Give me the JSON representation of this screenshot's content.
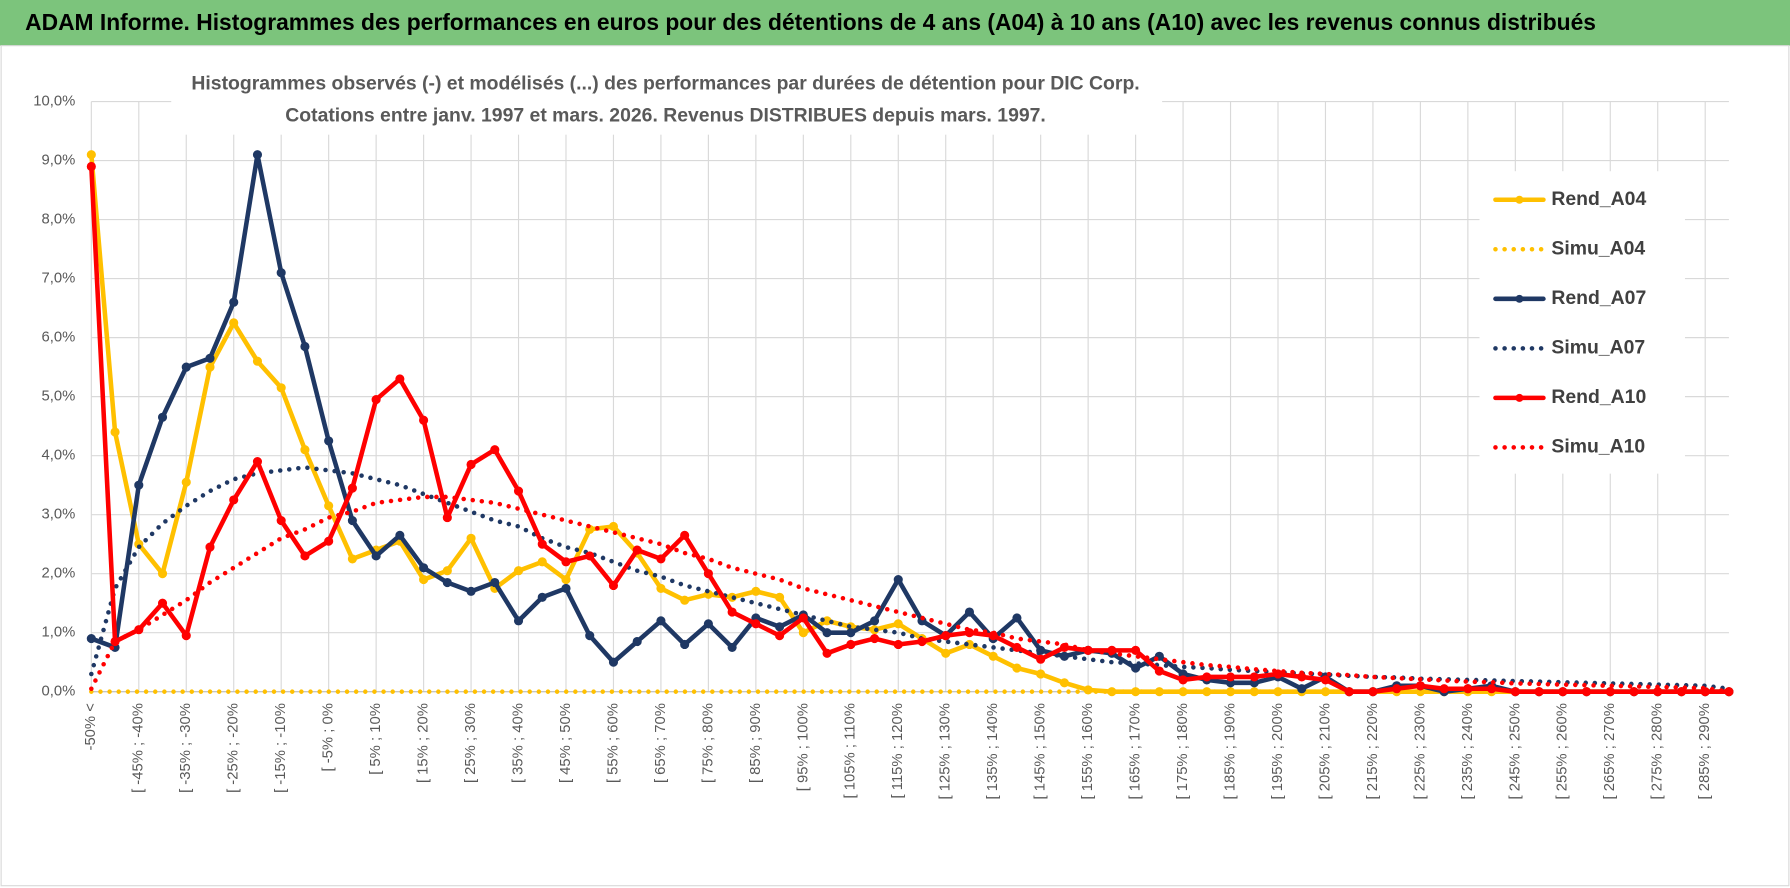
{
  "header": {
    "title": "ADAM Informe. Histogrammes des performances en euros pour des détentions de 4 ans (A04) à 10 ans (A10) avec les revenus connus distribués"
  },
  "chart_data": {
    "type": "line",
    "title": [
      "Histogrammes observés (-) et modélisés (...) des performances par durées de détention pour DIC Corp.",
      "Cotations entre janv. 1997 et mars. 2026. Revenus DISTRIBUES depuis mars. 1997."
    ],
    "categories": [
      "-50% <",
      null,
      "[ -45% ; -40%",
      null,
      "[ -35% ; -30%",
      null,
      "[ -25% ; -20%",
      null,
      "[ -15% ; -10%",
      null,
      "[ -5% ; 0%",
      null,
      "[ 5% ; 10%",
      null,
      "[ 15% ; 20%",
      null,
      "[ 25% ; 30%",
      null,
      "[ 35% ; 40%",
      null,
      "[ 45% ; 50%",
      null,
      "[ 55% ; 60%",
      null,
      "[ 65% ; 70%",
      null,
      "[ 75% ; 80%",
      null,
      "[ 85% ; 90%",
      null,
      "[ 95% ; 100%",
      null,
      "[ 105% ; 110%",
      null,
      "[ 115% ; 120%",
      null,
      "[ 125% ; 130%",
      null,
      "[ 135% ; 140%",
      null,
      "[ 145% ; 150%",
      null,
      "[ 155% ; 160%",
      null,
      "[ 165% ; 170%",
      null,
      "[ 175% ; 180%",
      null,
      "[ 185% ; 190%",
      null,
      "[ 195% ; 200%",
      null,
      "[ 205% ; 210%",
      null,
      "[ 215% ; 220%",
      null,
      "[ 225% ; 230%",
      null,
      "[ 235% ; 240%",
      null,
      "[ 245% ; 250%",
      null,
      "[ 255% ; 260%",
      null,
      "[ 265% ; 270%",
      null,
      "[ 275% ; 280%",
      null,
      "[ 285% ; 290%",
      null
    ],
    "ylim": [
      0,
      10
    ],
    "yticks": [
      {
        "value": 0,
        "label": "0,0%"
      },
      {
        "value": 1,
        "label": "1,0%"
      },
      {
        "value": 2,
        "label": "2,0%"
      },
      {
        "value": 3,
        "label": "3,0%"
      },
      {
        "value": 4,
        "label": "4,0%"
      },
      {
        "value": 5,
        "label": "5,0%"
      },
      {
        "value": 6,
        "label": "6,0%"
      },
      {
        "value": 7,
        "label": "7,0%"
      },
      {
        "value": 8,
        "label": "8,0%"
      },
      {
        "value": 9,
        "label": "9,0%"
      },
      {
        "value": 10,
        "label": "10,0%"
      }
    ],
    "grid": true,
    "legend": "right",
    "series": [
      {
        "name": "Rend_A04",
        "color": "#FFC000",
        "style": "solid",
        "markers": true,
        "values": [
          9.1,
          4.4,
          2.5,
          2.0,
          3.55,
          5.5,
          6.25,
          5.6,
          5.15,
          4.1,
          3.15,
          2.25,
          2.4,
          2.55,
          1.9,
          2.05,
          2.6,
          1.75,
          2.05,
          2.2,
          1.9,
          2.75,
          2.8,
          2.35,
          1.75,
          1.55,
          1.65,
          1.6,
          1.7,
          1.6,
          1.0,
          1.2,
          1.1,
          1.05,
          1.15,
          0.9,
          0.65,
          0.8,
          0.6,
          0.4,
          0.3,
          0.15,
          0.03,
          0,
          0,
          0,
          0,
          0,
          0,
          0,
          0,
          0,
          0,
          0,
          0,
          0,
          0,
          0,
          0,
          0,
          0,
          0,
          0,
          0,
          0,
          0,
          0,
          0,
          0,
          0
        ]
      },
      {
        "name": "Simu_A04",
        "color": "#FFC000",
        "style": "dotted",
        "markers": false,
        "values": [
          0,
          0,
          0,
          0,
          0,
          0,
          0,
          0,
          0,
          0,
          0,
          0,
          0,
          0,
          0,
          0,
          0,
          0,
          0,
          0,
          0,
          0,
          0,
          0,
          0,
          0,
          0,
          0,
          0,
          0,
          0,
          0,
          0,
          0,
          0,
          0,
          0,
          0,
          0,
          0,
          0,
          0,
          0,
          0,
          0,
          0,
          0,
          0,
          0,
          0,
          0,
          0,
          0,
          0,
          0,
          0,
          0,
          0,
          0,
          0,
          0,
          0,
          0,
          0,
          0,
          0,
          0,
          0,
          0,
          0
        ]
      },
      {
        "name": "Rend_A07",
        "color": "#1F3864",
        "style": "solid",
        "markers": true,
        "values": [
          0.9,
          0.75,
          3.5,
          4.65,
          5.5,
          5.65,
          6.6,
          9.1,
          7.1,
          5.85,
          4.25,
          2.9,
          2.3,
          2.65,
          2.1,
          1.85,
          1.7,
          1.85,
          1.2,
          1.6,
          1.75,
          0.95,
          0.5,
          0.85,
          1.2,
          0.8,
          1.15,
          0.75,
          1.25,
          1.1,
          1.3,
          1.0,
          1.0,
          1.2,
          1.9,
          1.2,
          0.95,
          1.35,
          0.9,
          1.25,
          0.7,
          0.6,
          0.7,
          0.65,
          0.4,
          0.6,
          0.3,
          0.2,
          0.15,
          0.15,
          0.25,
          0.05,
          0.25,
          0,
          0,
          0.1,
          0.1,
          0,
          0.05,
          0.1,
          0,
          0,
          0,
          0,
          0,
          0,
          0,
          0,
          0,
          0
        ]
      },
      {
        "name": "Simu_A07",
        "color": "#1F3864",
        "style": "dotted",
        "markers": false,
        "values": [
          0.3,
          1.75,
          2.45,
          2.85,
          3.15,
          3.4,
          3.6,
          3.7,
          3.75,
          3.8,
          3.75,
          3.7,
          3.6,
          3.5,
          3.35,
          3.2,
          3.05,
          2.9,
          2.8,
          2.6,
          2.45,
          2.35,
          2.2,
          2.05,
          1.95,
          1.8,
          1.7,
          1.6,
          1.5,
          1.4,
          1.3,
          1.2,
          1.1,
          1.05,
          1.0,
          0.9,
          0.85,
          0.8,
          0.75,
          0.7,
          0.65,
          0.6,
          0.55,
          0.5,
          0.48,
          0.45,
          0.42,
          0.4,
          0.37,
          0.35,
          0.33,
          0.31,
          0.29,
          0.27,
          0.25,
          0.24,
          0.22,
          0.21,
          0.2,
          0.19,
          0.18,
          0.17,
          0.16,
          0.15,
          0.14,
          0.13,
          0.12,
          0.11,
          0.1,
          0.05
        ]
      },
      {
        "name": "Rend_A10",
        "color": "#FF0000",
        "style": "solid",
        "markers": true,
        "values": [
          8.9,
          0.85,
          1.05,
          1.5,
          0.95,
          2.45,
          3.25,
          3.9,
          2.9,
          2.3,
          2.55,
          3.45,
          4.95,
          5.3,
          4.6,
          2.95,
          3.85,
          4.1,
          3.4,
          2.5,
          2.2,
          2.3,
          1.8,
          2.4,
          2.25,
          2.65,
          2.0,
          1.35,
          1.15,
          0.95,
          1.25,
          0.65,
          0.8,
          0.9,
          0.8,
          0.85,
          0.95,
          1.0,
          0.95,
          0.75,
          0.55,
          0.75,
          0.7,
          0.7,
          0.7,
          0.35,
          0.2,
          0.25,
          0.25,
          0.25,
          0.3,
          0.25,
          0.2,
          0,
          0,
          0.05,
          0.1,
          0.05,
          0.05,
          0.05,
          0,
          0,
          0,
          0,
          0,
          0,
          0,
          0,
          0,
          0
        ]
      },
      {
        "name": "Simu_A10",
        "color": "#FF0000",
        "style": "dotted",
        "markers": false,
        "values": [
          0.05,
          0.85,
          1.05,
          1.3,
          1.55,
          1.85,
          2.1,
          2.35,
          2.6,
          2.75,
          2.95,
          3.05,
          3.2,
          3.25,
          3.3,
          3.3,
          3.25,
          3.2,
          3.1,
          3.0,
          2.9,
          2.8,
          2.7,
          2.6,
          2.5,
          2.35,
          2.25,
          2.1,
          2.0,
          1.9,
          1.75,
          1.65,
          1.55,
          1.45,
          1.35,
          1.25,
          1.15,
          1.05,
          1.0,
          0.9,
          0.85,
          0.8,
          0.7,
          0.65,
          0.6,
          0.55,
          0.5,
          0.45,
          0.42,
          0.38,
          0.35,
          0.32,
          0.3,
          0.28,
          0.25,
          0.23,
          0.21,
          0.19,
          0.17,
          0.16,
          0.14,
          0.13,
          0.12,
          0.11,
          0.1,
          0.09,
          0.08,
          0.07,
          0.06,
          0
        ]
      }
    ]
  }
}
